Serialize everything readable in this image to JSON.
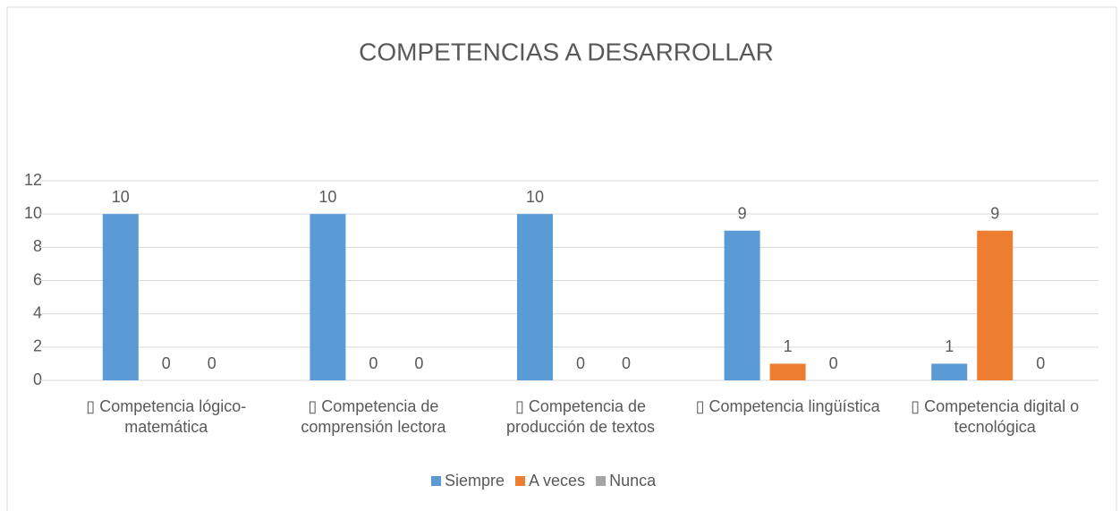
{
  "chart_data": {
    "type": "bar",
    "title": "COMPETENCIAS A DESARROLLAR",
    "categories": [
      "▯ Competencia lógico-matemática",
      "▯ Competencia de comprensión lectora",
      "▯ Competencia de producción de textos",
      "▯ Competencia lingüística",
      "▯ Competencia digital o tecnológica"
    ],
    "series": [
      {
        "name": "Siempre",
        "color": "#5b9bd5",
        "values": [
          10,
          10,
          10,
          9,
          1
        ]
      },
      {
        "name": "A veces",
        "color": "#ed7d31",
        "values": [
          0,
          0,
          0,
          1,
          9
        ]
      },
      {
        "name": "Nunca",
        "color": "#a5a5a5",
        "values": [
          0,
          0,
          0,
          0,
          0
        ]
      }
    ],
    "ylim": [
      0,
      12
    ],
    "yticks": [
      0,
      2,
      4,
      6,
      8,
      10,
      12
    ],
    "grid": true,
    "legend": "bottom"
  }
}
